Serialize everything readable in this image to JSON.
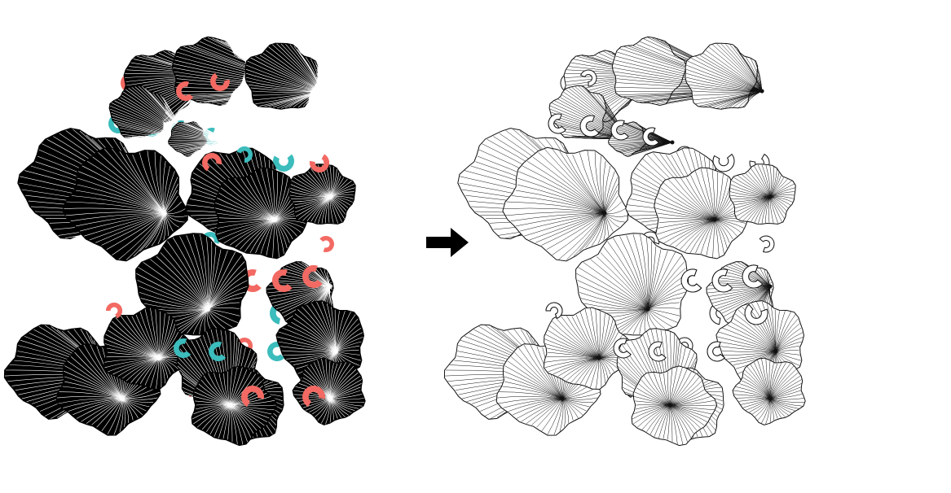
{
  "palette": {
    "background": "#ffffff",
    "flower_fill": "#000000",
    "flower_rib_light": "#ffffff",
    "coral": "#f26a63",
    "teal": "#3cbcbc",
    "outline": "#111111"
  },
  "panels": {
    "left": {
      "role": "input-design",
      "style": "filled-color"
    },
    "right": {
      "role": "output-design",
      "style": "line-art"
    }
  },
  "arrow_icon": "right-arrow-icon"
}
